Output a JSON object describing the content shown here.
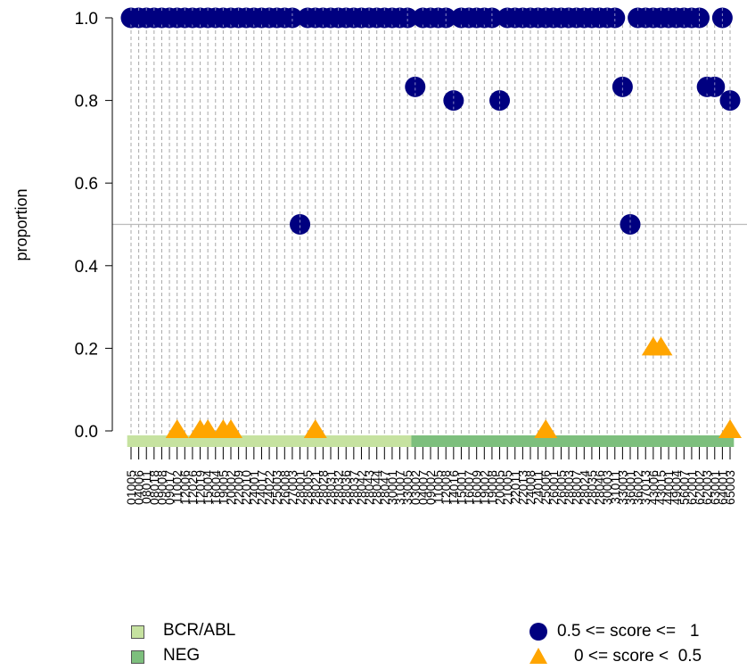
{
  "chart_data": {
    "type": "scatter",
    "title": "",
    "xlabel": "",
    "ylabel": "proportion",
    "ylim": [
      0,
      1
    ],
    "yticks": [
      "0.0",
      "0.2",
      "0.4",
      "0.6",
      "0.8",
      "1.0"
    ],
    "reference_line": 0.5,
    "grid": "vertical dashed per sample",
    "num_samples": 79,
    "groups": [
      {
        "name": "BCR/ABL",
        "color": "#c6e2a0",
        "count": 37
      },
      {
        "name": "NEG",
        "color": "#7dbf7d",
        "count": 42
      }
    ],
    "symbol_classes": [
      {
        "label": "0.5 <= score <=   1",
        "shape": "circle",
        "color": "#000080"
      },
      {
        "label": "0 <= score <  0.5",
        "shape": "triangle",
        "color": "#ffa500"
      }
    ],
    "x_labels": [
      "01005",
      "04006",
      "08011",
      "08018",
      "09008",
      "09017",
      "11002",
      "12006",
      "12026",
      "12019",
      "15004",
      "16004",
      "19005",
      "20002",
      "22009",
      "22010",
      "24001",
      "24017",
      "24022",
      "25003",
      "26008",
      "27003",
      "28001",
      "28005",
      "28021",
      "28028",
      "28031",
      "28032",
      "28036",
      "28037",
      "28042",
      "28043",
      "28044",
      "28047",
      "30001",
      "31007",
      "33005",
      "03002",
      "04007",
      "09002",
      "11005",
      "12008",
      "14016",
      "15001",
      "16007",
      "16009",
      "19002",
      "19008",
      "20005",
      "21005",
      "22011",
      "22013",
      "24008",
      "24011",
      "25006",
      "26001",
      "26005",
      "28003",
      "28007",
      "28024",
      "28035",
      "28046",
      "30003",
      "31011",
      "33003",
      "36001",
      "36002",
      "37013",
      "43006",
      "43015",
      "44001",
      "49004",
      "56007",
      "62001",
      "62002",
      "62003",
      "63001",
      "64001",
      "65003"
    ],
    "values": [
      1,
      1,
      1,
      1,
      1,
      1,
      1,
      1,
      1,
      1,
      1,
      1,
      1,
      1,
      1,
      1,
      1,
      1,
      1,
      1,
      1,
      1,
      0.5,
      1,
      1,
      1,
      1,
      1,
      1,
      1,
      1,
      1,
      1,
      1,
      1,
      1,
      1,
      0.833,
      1,
      1,
      1,
      1,
      0.8,
      1,
      1,
      1,
      1,
      1,
      0.8,
      1,
      1,
      1,
      1,
      1,
      1,
      1,
      1,
      1,
      1,
      1,
      1,
      1,
      1,
      1,
      0.833,
      0.5,
      1,
      1,
      1,
      1,
      1,
      1,
      1,
      1,
      1,
      0.833,
      0.833,
      1,
      0.8
    ],
    "values_low": [
      null,
      null,
      null,
      null,
      null,
      null,
      0,
      null,
      null,
      0,
      0,
      null,
      0,
      0,
      null,
      null,
      null,
      null,
      null,
      null,
      null,
      null,
      null,
      null,
      0,
      null,
      null,
      null,
      null,
      null,
      null,
      null,
      null,
      null,
      null,
      null,
      null,
      null,
      null,
      null,
      null,
      null,
      null,
      null,
      null,
      null,
      null,
      null,
      null,
      null,
      null,
      null,
      null,
      null,
      0,
      null,
      null,
      null,
      null,
      null,
      null,
      null,
      null,
      null,
      null,
      null,
      null,
      null,
      0.2,
      0.2,
      null,
      null,
      null,
      null,
      null,
      null,
      null,
      null,
      0
    ]
  }
}
